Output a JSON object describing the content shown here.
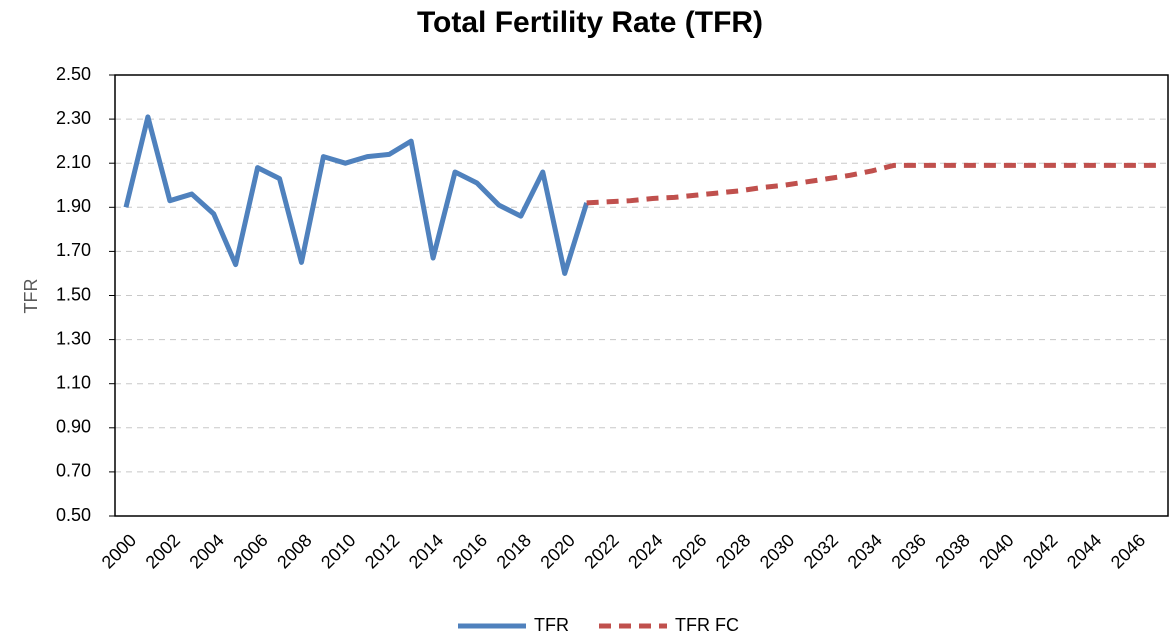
{
  "chart_data": {
    "type": "line",
    "title": "Total Fertility Rate (TFR)",
    "y_label": "TFR",
    "x": [
      2000,
      2001,
      2002,
      2003,
      2004,
      2005,
      2006,
      2007,
      2008,
      2009,
      2010,
      2011,
      2012,
      2013,
      2014,
      2015,
      2016,
      2017,
      2018,
      2019,
      2020,
      2021,
      2022,
      2023,
      2024,
      2025,
      2026,
      2027,
      2028,
      2029,
      2030,
      2031,
      2032,
      2033,
      2034,
      2035,
      2036,
      2037,
      2038,
      2039,
      2040,
      2041,
      2042,
      2043,
      2044,
      2045,
      2046,
      2047
    ],
    "xlim": [
      1999.5,
      2047.5
    ],
    "xticks": [
      2000,
      2002,
      2004,
      2006,
      2008,
      2010,
      2012,
      2014,
      2016,
      2018,
      2020,
      2022,
      2024,
      2026,
      2028,
      2030,
      2032,
      2034,
      2036,
      2038,
      2040,
      2042,
      2044,
      2046
    ],
    "ylim": [
      0.5,
      2.5
    ],
    "yticks": [
      {
        "value": 0.5,
        "label": "0.50"
      },
      {
        "value": 0.7,
        "label": "0.70"
      },
      {
        "value": 0.9,
        "label": "0.90"
      },
      {
        "value": 1.1,
        "label": "1.10"
      },
      {
        "value": 1.3,
        "label": "1.30"
      },
      {
        "value": 1.5,
        "label": "1.50"
      },
      {
        "value": 1.7,
        "label": "1.70"
      },
      {
        "value": 1.9,
        "label": "1.90"
      },
      {
        "value": 2.1,
        "label": "2.10"
      },
      {
        "value": 2.3,
        "label": "2.30"
      },
      {
        "value": 2.5,
        "label": "2.50"
      }
    ],
    "grid": true,
    "legend": "bottom",
    "series": [
      {
        "name": "TFR",
        "color": "#4f81bd",
        "dash": false,
        "values": [
          1.9,
          2.31,
          1.93,
          1.96,
          1.87,
          1.64,
          2.08,
          2.03,
          1.65,
          2.13,
          2.1,
          2.13,
          2.14,
          2.2,
          1.67,
          2.06,
          2.01,
          1.91,
          1.86,
          2.06,
          1.6,
          1.92,
          null,
          null,
          null,
          null,
          null,
          null,
          null,
          null,
          null,
          null,
          null,
          null,
          null,
          null,
          null,
          null,
          null,
          null,
          null,
          null,
          null,
          null,
          null,
          null,
          null,
          null
        ]
      },
      {
        "name": "TFR FC",
        "color": "#c0504d",
        "dash": true,
        "values": [
          null,
          null,
          null,
          null,
          null,
          null,
          null,
          null,
          null,
          null,
          null,
          null,
          null,
          null,
          null,
          null,
          null,
          null,
          null,
          null,
          null,
          1.92,
          1.925,
          1.93,
          1.94,
          1.945,
          1.955,
          1.965,
          1.975,
          1.99,
          2.0,
          2.015,
          2.03,
          2.045,
          2.065,
          2.09,
          2.09,
          2.09,
          2.09,
          2.09,
          2.09,
          2.09,
          2.09,
          2.09,
          2.09,
          2.09,
          2.09,
          2.09
        ]
      }
    ]
  }
}
